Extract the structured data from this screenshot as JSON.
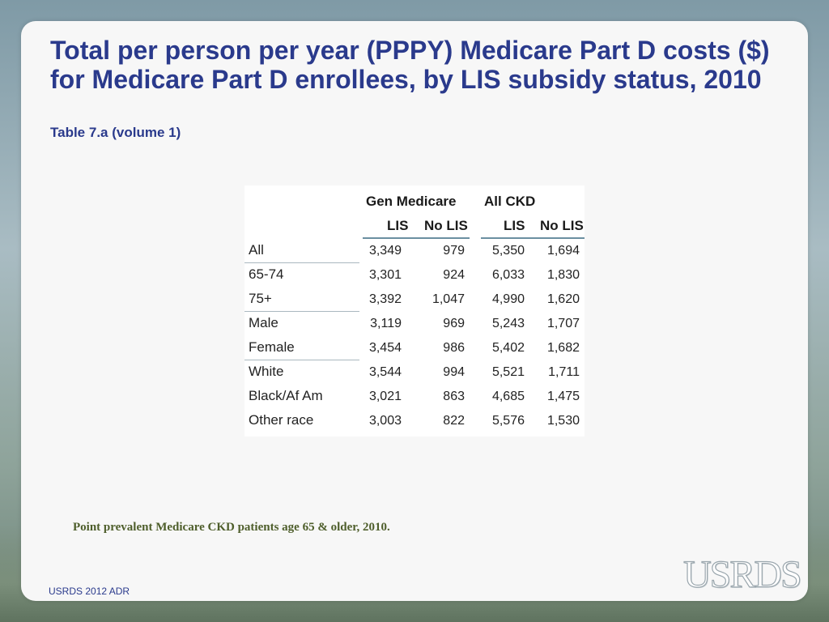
{
  "slide": {
    "title": "Total per person per year (PPPY) Medicare Part D costs ($) for Medicare Part D enrollees, by LIS subsidy status, 2010",
    "subtitle": "Table 7.a (volume 1)",
    "caption": "Point prevalent Medicare CKD patients age 65 & older, 2010.",
    "footer": "USRDS 2012 ADR",
    "logo_text": "USRDS"
  },
  "table": {
    "group_headers": [
      "Gen Medicare",
      "All CKD"
    ],
    "column_headers": [
      "LIS",
      "No LIS",
      "LIS",
      "No LIS"
    ],
    "rows": [
      {
        "label": "All",
        "values": [
          "3,349",
          "979",
          "5,350",
          "1,694"
        ]
      },
      {
        "label": "65-74",
        "values": [
          "3,301",
          "924",
          "6,033",
          "1,830"
        ]
      },
      {
        "label": "75+",
        "values": [
          "3,392",
          "1,047",
          "4,990",
          "1,620"
        ]
      },
      {
        "label": "Male",
        "values": [
          "3,119",
          "969",
          "5,243",
          "1,707"
        ]
      },
      {
        "label": "Female",
        "values": [
          "3,454",
          "986",
          "5,402",
          "1,682"
        ]
      },
      {
        "label": "White",
        "values": [
          "3,544",
          "994",
          "5,521",
          "1,711"
        ]
      },
      {
        "label": "Black/Af Am",
        "values": [
          "3,021",
          "863",
          "4,685",
          "1,475"
        ]
      },
      {
        "label": "Other race",
        "values": [
          "3,003",
          "822",
          "5,576",
          "1,530"
        ]
      }
    ]
  },
  "colors": {
    "title": "#2a3a8c",
    "caption": "#4e5e2b",
    "rule": "#6b8fa1"
  }
}
